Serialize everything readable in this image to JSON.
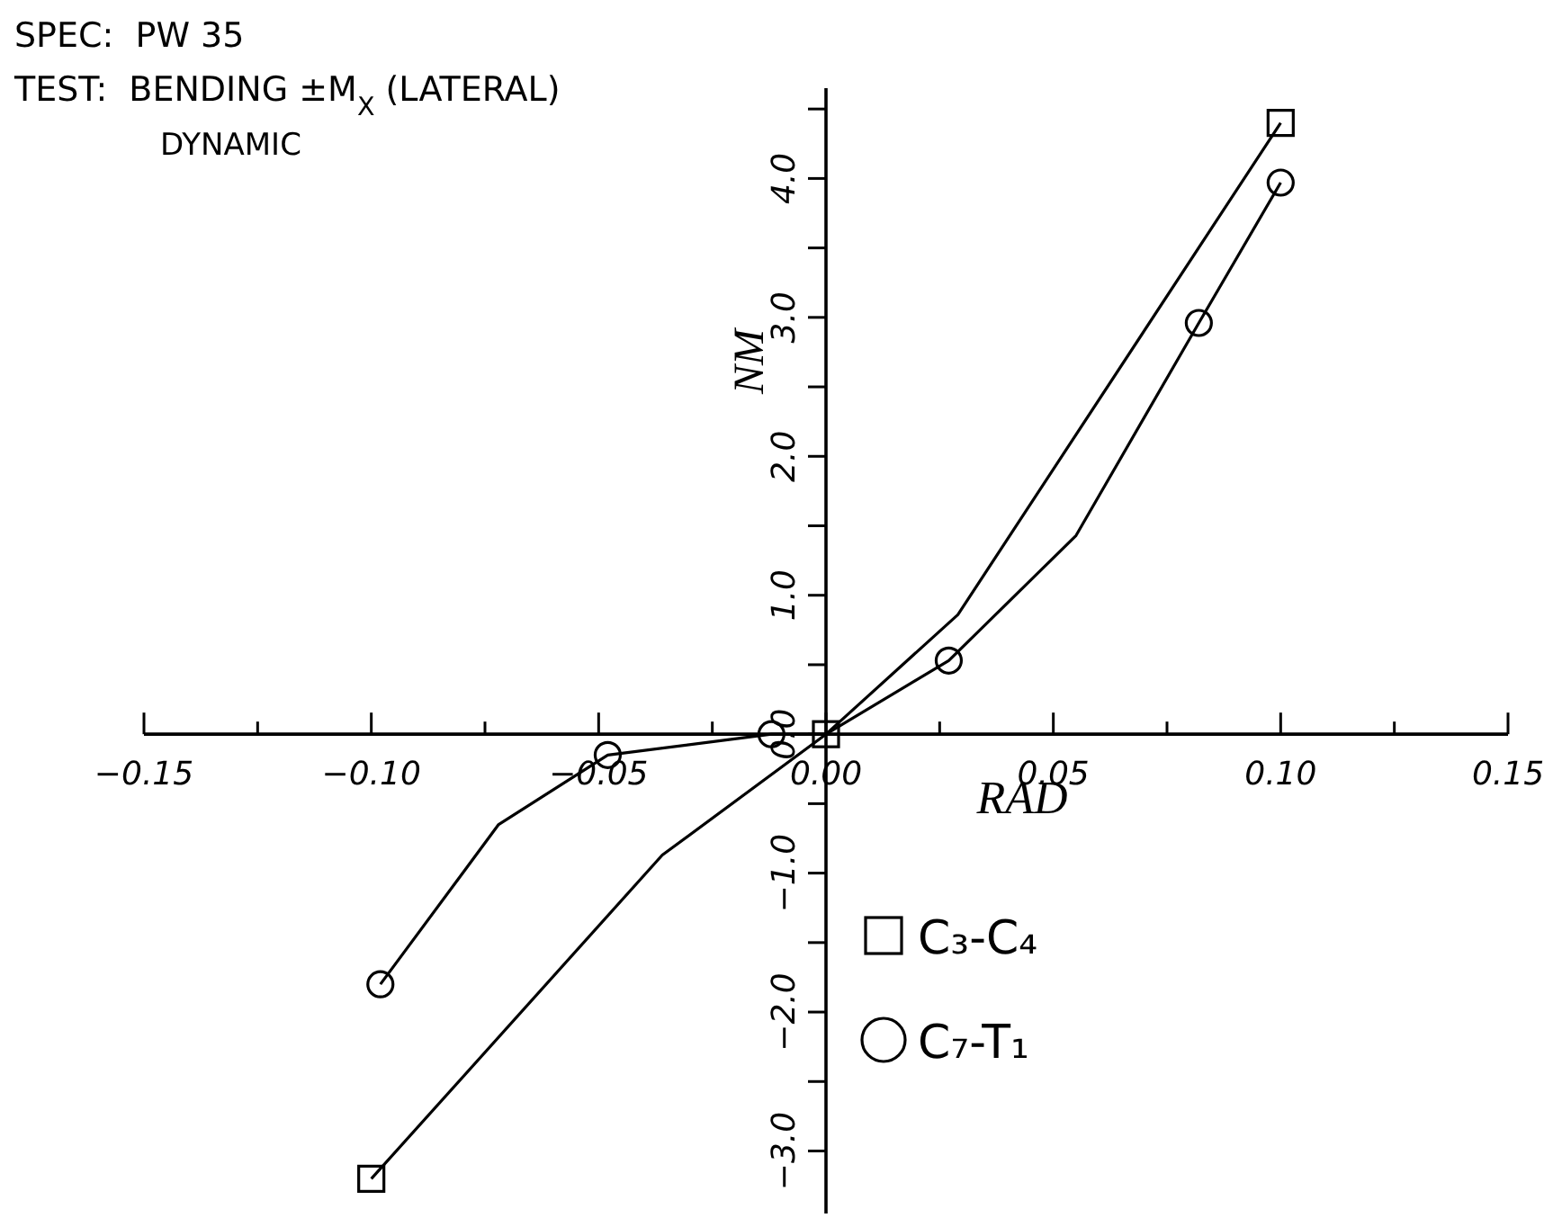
{
  "chart_data": {
    "type": "line",
    "title": "SPEC:  PW 35",
    "subtitle": "TEST:  BENDING ±M$_{X}$ (LATERAL)",
    "annotations": [
      "DYNAMIC"
    ],
    "xlabel": "RAD",
    "ylabel": "NM",
    "xlim": [
      -0.15,
      0.15
    ],
    "ylim": [
      -3.45,
      4.65
    ],
    "xticks": [
      {
        "value": -0.15,
        "label": "−0.15"
      },
      {
        "value": -0.125,
        "label": null
      },
      {
        "value": -0.1,
        "label": "−0.10"
      },
      {
        "value": -0.075,
        "label": null
      },
      {
        "value": -0.05,
        "label": "−0.05"
      },
      {
        "value": -0.025,
        "label": null
      },
      {
        "value": 0,
        "label": "0.00"
      },
      {
        "value": 0.025,
        "label": null
      },
      {
        "value": 0.05,
        "label": "0.05"
      },
      {
        "value": 0.075,
        "label": null
      },
      {
        "value": 0.1,
        "label": "0.10"
      },
      {
        "value": 0.125,
        "label": null
      },
      {
        "value": 0.15,
        "label": "0.15"
      }
    ],
    "yticks": [
      {
        "value": -3,
        "label": "−3.0"
      },
      {
        "value": -2.5,
        "label": null
      },
      {
        "value": -2,
        "label": "−2.0"
      },
      {
        "value": -1.5,
        "label": null
      },
      {
        "value": -1,
        "label": "−1.0"
      },
      {
        "value": -0.5,
        "label": null
      },
      {
        "value": 0,
        "label": "0.0"
      },
      {
        "value": 0.5,
        "label": null
      },
      {
        "value": 1,
        "label": "1.0"
      },
      {
        "value": 1.5,
        "label": null
      },
      {
        "value": 2,
        "label": "2.0"
      },
      {
        "value": 2.5,
        "label": null
      },
      {
        "value": 3,
        "label": "3.0"
      },
      {
        "value": 3.5,
        "label": null
      },
      {
        "value": 4,
        "label": "4.0"
      },
      {
        "value": 4.5,
        "label": null
      }
    ],
    "grid": false,
    "legend": "bottom",
    "line_style": "solid",
    "series": [
      {
        "color": "#000000",
        "marker": "none",
        "x": [
          -0.1,
          -0.036,
          0,
          0.029,
          0.1
        ],
        "values": [
          -3.2,
          -0.87,
          0,
          0.86,
          4.4
        ]
      },
      {
        "color": "#000000",
        "marker": "none",
        "x": [
          -0.098,
          -0.072,
          -0.048,
          -0.012,
          0,
          0.027,
          0.055,
          0.082,
          0.1
        ],
        "values": [
          -1.8,
          -0.65,
          -0.15,
          0,
          0,
          0.53,
          1.43,
          2.96,
          3.97
        ]
      },
      {
        "type": "scatter",
        "name": "C₃-C₄",
        "color": "#000000",
        "marker": "square",
        "x": [
          -0.1,
          0,
          0.1
        ],
        "values": [
          -3.2,
          0,
          4.4
        ]
      },
      {
        "type": "scatter",
        "name": "C₇-T₁",
        "color": "#000000",
        "marker": "circle",
        "x": [
          -0.098,
          -0.048,
          -0.012,
          0.027,
          0.082,
          0.1
        ],
        "values": [
          -1.8,
          -0.15,
          0,
          0.53,
          2.96,
          3.97
        ]
      }
    ]
  }
}
